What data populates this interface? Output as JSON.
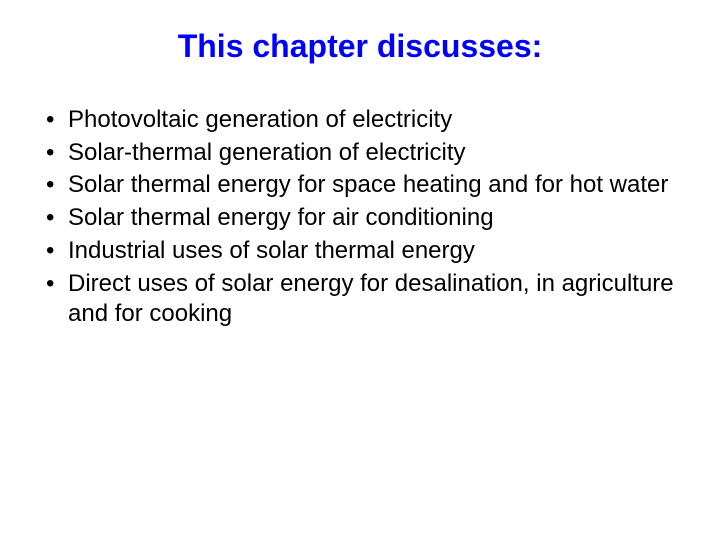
{
  "title": {
    "text": "This chapter discusses:",
    "color": "#0000ff",
    "fontsize": 32
  },
  "bullets": {
    "color": "#000000",
    "fontsize": 24,
    "items": [
      "Photovoltaic generation of electricity",
      "Solar-thermal generation of electricity",
      "Solar thermal energy for space heating and for hot water",
      "Solar thermal energy for air conditioning",
      "Industrial uses of solar thermal energy",
      "Direct uses of solar energy for desalination, in agriculture and for cooking"
    ]
  }
}
